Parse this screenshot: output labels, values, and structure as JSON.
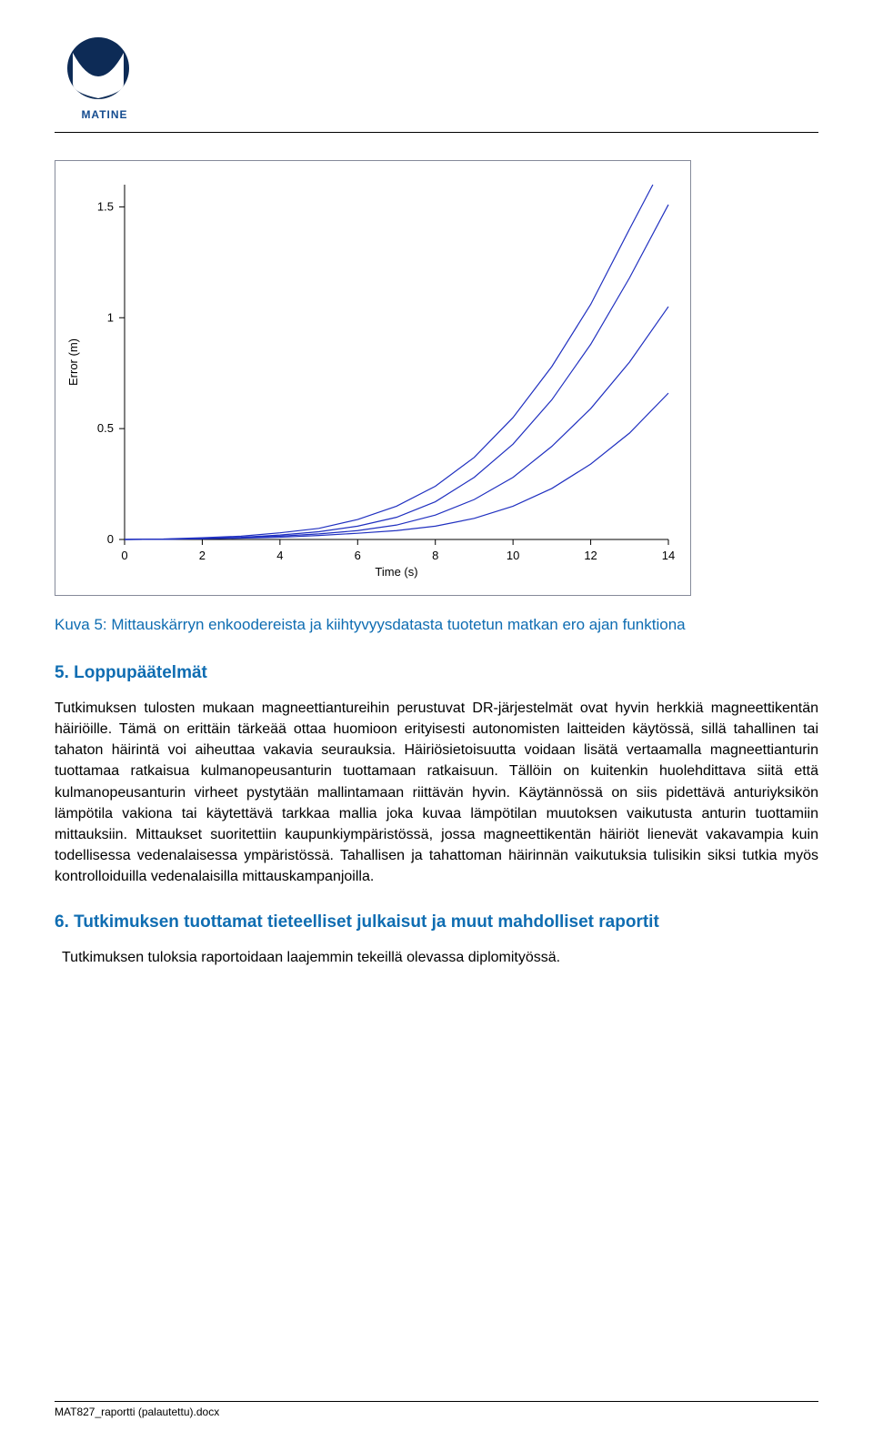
{
  "logo": {
    "name": "MATINE",
    "circle_color": "#0d2b56",
    "shield_color": "#ffffff",
    "text_color": "#134b8f"
  },
  "chart": {
    "type": "line",
    "border_color": "#858a9a",
    "background_color": "#ffffff",
    "axis_color": "#000000",
    "tick_fontsize": 13,
    "label_fontsize": 13,
    "line_color": "#2030c0",
    "line_width": 1.2,
    "xlabel": "Time (s)",
    "ylabel": "Error (m)",
    "xlim": [
      0,
      14
    ],
    "ylim": [
      0,
      1.6
    ],
    "xticks": [
      0,
      2,
      4,
      6,
      8,
      10,
      12,
      14
    ],
    "yticks": [
      0,
      0.5,
      1,
      1.5
    ],
    "ytick_labels": [
      "0",
      "0.5",
      "1",
      "1.5"
    ],
    "series": [
      {
        "points": [
          [
            0,
            0.0
          ],
          [
            1,
            0.002
          ],
          [
            2,
            0.008
          ],
          [
            3,
            0.015
          ],
          [
            4,
            0.03
          ],
          [
            5,
            0.05
          ],
          [
            6,
            0.09
          ],
          [
            7,
            0.15
          ],
          [
            8,
            0.24
          ],
          [
            9,
            0.37
          ],
          [
            10,
            0.55
          ],
          [
            11,
            0.78
          ],
          [
            12,
            1.06
          ],
          [
            13,
            1.4
          ],
          [
            13.6,
            1.6
          ]
        ]
      },
      {
        "points": [
          [
            0,
            0.0
          ],
          [
            1,
            0.001
          ],
          [
            2,
            0.005
          ],
          [
            3,
            0.01
          ],
          [
            4,
            0.02
          ],
          [
            5,
            0.035
          ],
          [
            6,
            0.06
          ],
          [
            7,
            0.1
          ],
          [
            8,
            0.17
          ],
          [
            9,
            0.28
          ],
          [
            10,
            0.43
          ],
          [
            11,
            0.63
          ],
          [
            12,
            0.88
          ],
          [
            13,
            1.18
          ],
          [
            14,
            1.51
          ]
        ]
      },
      {
        "points": [
          [
            0,
            0.0
          ],
          [
            1,
            0.001
          ],
          [
            2,
            0.004
          ],
          [
            3,
            0.008
          ],
          [
            4,
            0.015
          ],
          [
            5,
            0.025
          ],
          [
            6,
            0.04
          ],
          [
            7,
            0.065
          ],
          [
            8,
            0.11
          ],
          [
            9,
            0.18
          ],
          [
            10,
            0.28
          ],
          [
            11,
            0.42
          ],
          [
            12,
            0.59
          ],
          [
            13,
            0.8
          ],
          [
            14,
            1.05
          ]
        ]
      },
      {
        "points": [
          [
            0,
            0.0
          ],
          [
            1,
            0.001
          ],
          [
            2,
            0.003
          ],
          [
            3,
            0.006
          ],
          [
            4,
            0.01
          ],
          [
            5,
            0.018
          ],
          [
            6,
            0.028
          ],
          [
            7,
            0.04
          ],
          [
            8,
            0.06
          ],
          [
            9,
            0.095
          ],
          [
            10,
            0.15
          ],
          [
            11,
            0.23
          ],
          [
            12,
            0.34
          ],
          [
            13,
            0.48
          ],
          [
            14,
            0.66
          ]
        ]
      }
    ]
  },
  "caption": "Kuva 5: Mittauskärryn enkoodereista ja kiihtyvyysdatasta tuotetun matkan ero ajan funktiona",
  "section5_title": "5. Loppupäätelmät",
  "body5": "Tutkimuksen tulosten mukaan magneettiantureihin perustuvat DR-järjestelmät ovat hyvin herkkiä magneettikentän häiriöille. Tämä on erittäin tärkeää ottaa huomioon erityisesti autonomisten laitteiden käytössä, sillä tahallinen tai tahaton häirintä voi aiheuttaa vakavia seurauksia. Häiriösietoisuutta voidaan lisätä vertaamalla magneettianturin tuottamaa ratkaisua kulmanopeusanturin tuottamaan ratkaisuun. Tällöin on kuitenkin huolehdittava siitä että kulmanopeusanturin virheet pystytään mallintamaan riittävän hyvin. Käytännössä on siis pidettävä anturiyksikön lämpötila vakiona tai käytettävä tarkkaa mallia joka kuvaa lämpötilan muutoksen vaikutusta anturin tuottamiin mittauksiin. Mittaukset suoritettiin kaupunkiympäristössä, jossa magneettikentän häiriöt lienevät vakavampia kuin todellisessa vedenalaisessa ympäristössä. Tahallisen ja tahattoman häirinnän vaikutuksia tulisikin siksi tutkia myös kontrolloiduilla vedenalaisilla mittauskampanjoilla.",
  "section6_title": "6. Tutkimuksen tuottamat tieteelliset julkaisut ja muut mahdolliset raportit",
  "body6": "Tutkimuksen tuloksia raportoidaan laajemmin tekeillä olevassa diplomityössä.",
  "footer": "MAT827_raportti (palautettu).docx"
}
